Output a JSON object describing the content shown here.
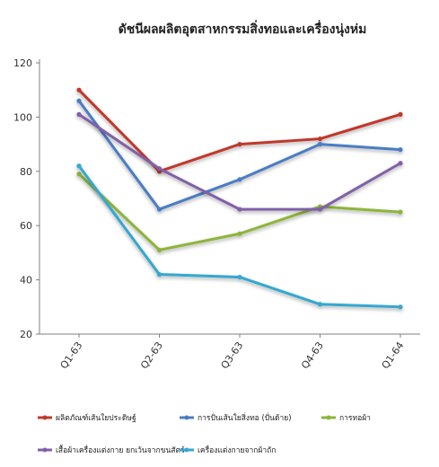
{
  "chart_data": {
    "type": "line",
    "title": "ดัชนีผลผลิตอุตสาหกรรมสิ่งทอและเครื่องนุ่งห่ม",
    "xlabel": "",
    "ylabel": "",
    "categories": [
      "Q1-63",
      "Q2-63",
      "Q3-63",
      "Q4-63",
      "Q1-64"
    ],
    "ylim": [
      20,
      120
    ],
    "yticks": [
      20,
      40,
      60,
      80,
      100,
      120
    ],
    "grid": false,
    "legend_position": "bottom",
    "series": [
      {
        "name": "ผลิตภัณฑ์เส้นใยประดิษฐ์",
        "color": "#C0392B",
        "values": [
          110,
          80,
          90,
          92,
          101
        ]
      },
      {
        "name": "การปั่นเส้นใยสิ่งทอ (ปั่นด้าย)",
        "color": "#4A7DC4",
        "values": [
          106,
          66,
          77,
          90,
          88
        ]
      },
      {
        "name": "การทอผ้า",
        "color": "#8DB43A",
        "values": [
          79,
          51,
          57,
          67,
          65
        ]
      },
      {
        "name": "เสื้อผ้าเครื่องแต่งกาย ยกเว้นจากขนสัตว์",
        "color": "#8060A8",
        "values": [
          101,
          81,
          66,
          66,
          83
        ]
      },
      {
        "name": "เครื่องแต่งกายจากผ้าถัก",
        "color": "#35A8CF",
        "values": [
          82,
          42,
          41,
          31,
          30
        ]
      }
    ]
  }
}
